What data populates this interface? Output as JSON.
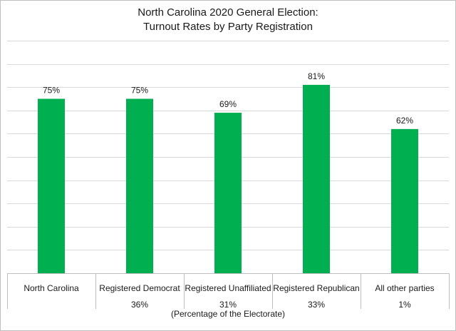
{
  "chart_data": {
    "type": "bar",
    "title": [
      "North Carolina 2020 General Election:",
      "Turnout Rates by Party Registration"
    ],
    "categories": [
      "North Carolina",
      "Registered Democrat",
      "Registered Unaffiliated",
      "Registered Republican",
      "All other parties"
    ],
    "values": [
      75,
      75,
      69,
      81,
      62
    ],
    "data_labels": [
      "75%",
      "75%",
      "69%",
      "81%",
      "62%"
    ],
    "electorate_share": [
      "",
      "36%",
      "31%",
      "33%",
      "1%"
    ],
    "xlabel": "(Percentage of the Electorate)",
    "ylabel": "",
    "ylim": [
      0,
      100
    ],
    "y_gridlines": 10,
    "grid": true,
    "legend": "none",
    "bar_color": "#00b050"
  }
}
